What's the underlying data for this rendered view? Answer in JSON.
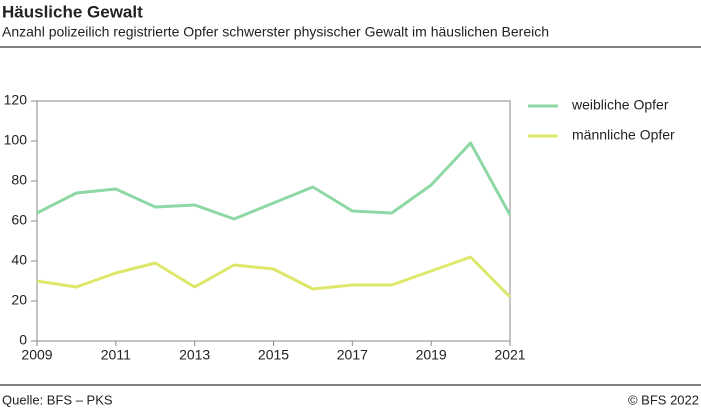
{
  "chart_data": {
    "type": "line",
    "title": "Häusliche Gewalt",
    "subtitle": "Anzahl polizeilich registrierte Opfer schwerster physischer Gewalt im häuslichen Bereich",
    "x": [
      2009,
      2010,
      2011,
      2012,
      2013,
      2014,
      2015,
      2016,
      2017,
      2018,
      2019,
      2020,
      2021
    ],
    "series": [
      {
        "name": "weibliche Opfer",
        "color": "#8ed8a6",
        "values": [
          64,
          74,
          76,
          67,
          68,
          61,
          69,
          77,
          65,
          64,
          78,
          99,
          63
        ]
      },
      {
        "name": "männliche Opfer",
        "color": "#dde86a",
        "values": [
          30,
          27,
          34,
          39,
          27,
          38,
          36,
          26,
          28,
          28,
          35,
          42,
          22
        ]
      }
    ],
    "xlim": [
      2009,
      2021
    ],
    "xticks": [
      2009,
      2011,
      2013,
      2015,
      2017,
      2019,
      2021
    ],
    "ylim": [
      0,
      120
    ],
    "yticks": [
      0,
      20,
      40,
      60,
      80,
      100,
      120
    ],
    "grid": false,
    "legend": "right",
    "source": "Quelle: BFS – PKS",
    "copyright": "© BFS 2022"
  }
}
